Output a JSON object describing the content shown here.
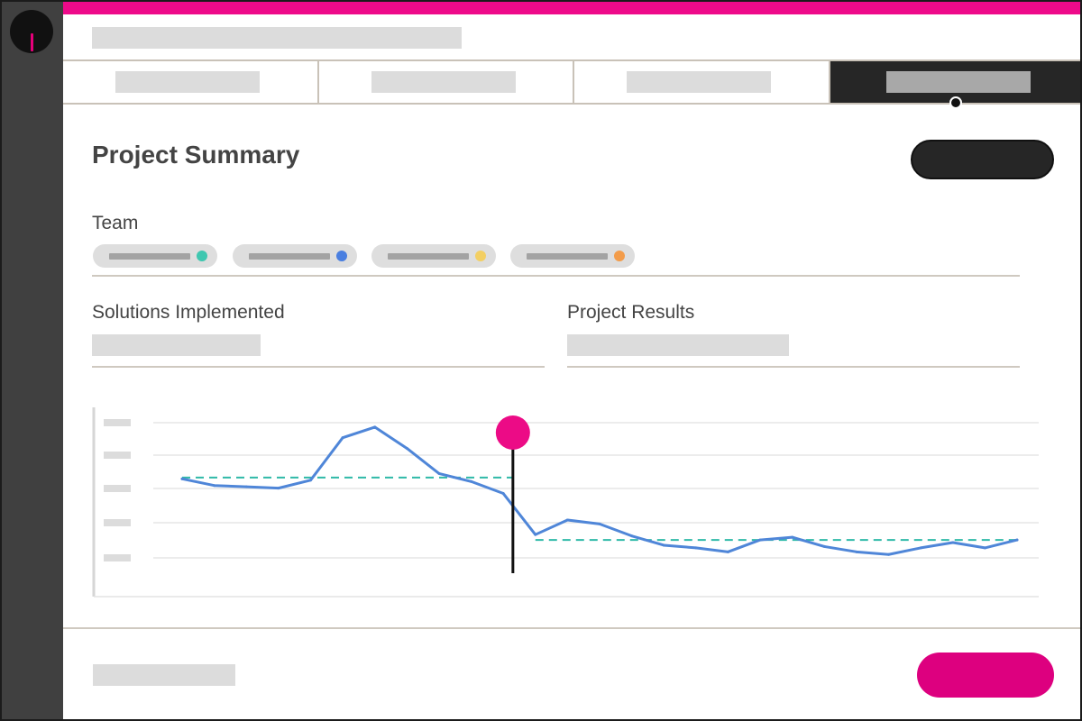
{
  "app": {
    "title": "Project Summary"
  },
  "tabs": [
    {
      "label": "",
      "active": false
    },
    {
      "label": "",
      "active": false
    },
    {
      "label": "",
      "active": false
    },
    {
      "label": "",
      "active": true
    }
  ],
  "sections": {
    "team_label": "Team",
    "solutions_label": "Solutions Implemented",
    "results_label": "Project Results"
  },
  "team_chips": [
    {
      "dot_color": "#3fc7b0"
    },
    {
      "dot_color": "#4a7fe0"
    },
    {
      "dot_color": "#f3cf63"
    },
    {
      "dot_color": "#f39c4a"
    }
  ],
  "colors": {
    "accent": "#ee0a8a",
    "primary_button": "#dd007f",
    "series_line": "#4f86d8",
    "average_line": "#2fb9a8",
    "marker": "#ec0b86"
  },
  "chart_data": {
    "type": "line",
    "grid": true,
    "y_tick_labels": [
      "",
      "",
      "",
      "",
      ""
    ],
    "series": [
      {
        "values": [
          57,
          52,
          51,
          50,
          56,
          88,
          96,
          80,
          61,
          55,
          46,
          15,
          26,
          23,
          14,
          7,
          5,
          2,
          11,
          13,
          6,
          2,
          0,
          5,
          9,
          5,
          11
        ]
      }
    ],
    "averages": [
      {
        "from_index": 0,
        "to_index": 10,
        "value": 58
      },
      {
        "from_index": 11,
        "to_index": 26,
        "value": 11
      }
    ],
    "change_marker_index": 10.3,
    "ylim": [
      -10,
      100
    ]
  }
}
